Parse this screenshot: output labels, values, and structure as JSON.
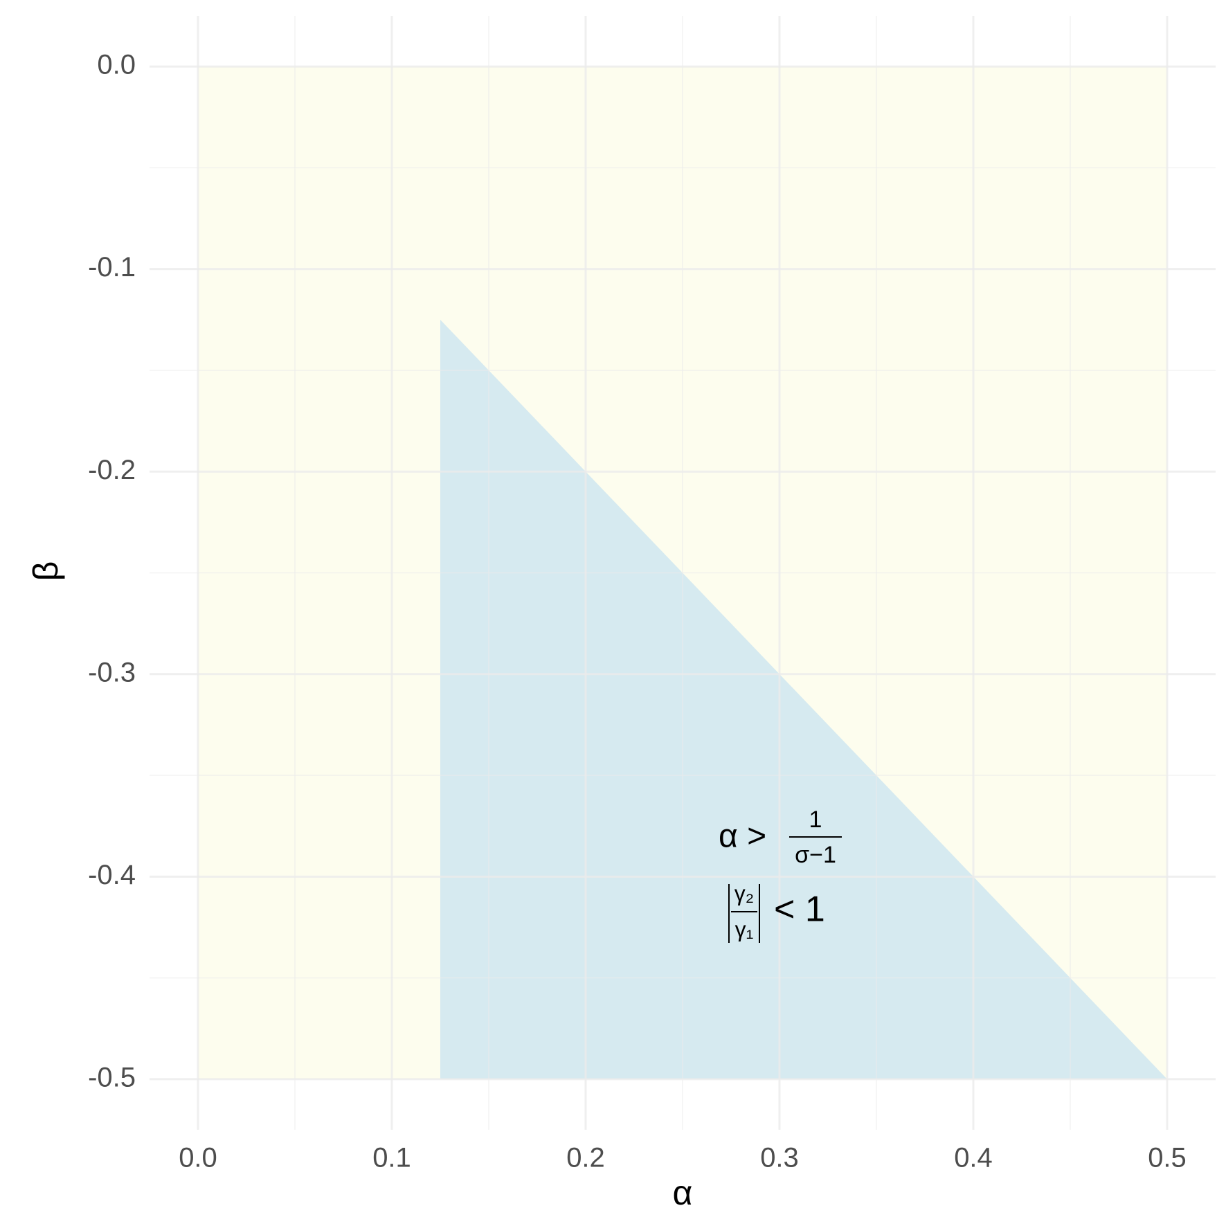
{
  "chart_data": {
    "type": "area",
    "x_label": "α",
    "y_label": "β",
    "regions": [
      {
        "color": "#fdfdee",
        "x": [
          0,
          0.5
        ],
        "ymin": [
          -0.5,
          -0.5
        ],
        "ymax": [
          0,
          0
        ]
      },
      {
        "color": "#d6eaf0",
        "x": [
          0.125,
          0.5
        ],
        "ymin": [
          -0.5,
          -0.5
        ],
        "ymax": [
          -0.125,
          -0.5
        ]
      }
    ],
    "xlim": [
      -0.025,
      0.525
    ],
    "ylim": [
      -0.525,
      0.025
    ],
    "xticks": [
      {
        "value": 0,
        "label": "0.0"
      },
      0.1,
      0.2,
      0.3,
      0.4,
      0.5
    ],
    "yticks": [
      {
        "value": 0,
        "label": "0.0"
      },
      -0.1,
      -0.2,
      -0.3,
      -0.4,
      -0.5
    ],
    "xminor": [
      0.05,
      0.15,
      0.25,
      0.35,
      0.45
    ],
    "yminor": [
      -0.05,
      -0.15,
      -0.25,
      -0.35,
      -0.45
    ],
    "grid": true,
    "annotation": {
      "line1": {
        "lhs": "α >",
        "numerator": "1",
        "denominator": "σ−1"
      },
      "line2": {
        "numerator": "γ₂",
        "denominator": "γ₁",
        "rhs": "< 1"
      }
    }
  }
}
